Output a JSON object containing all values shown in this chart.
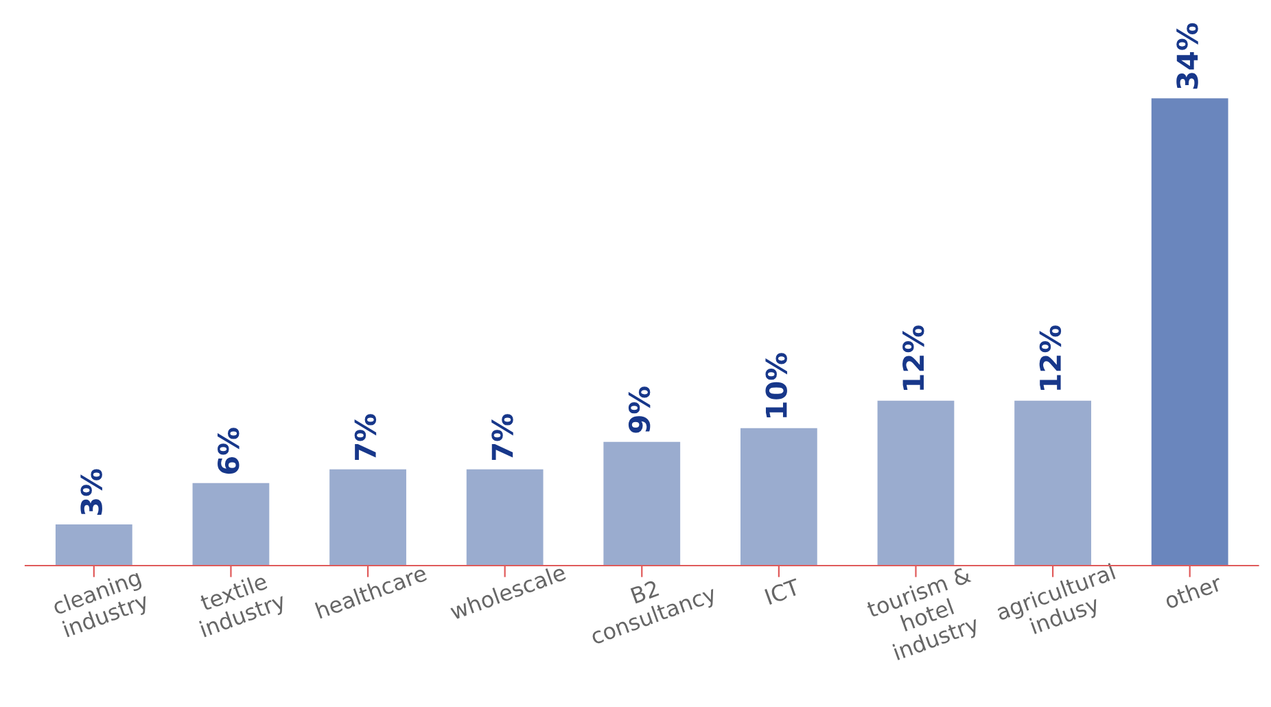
{
  "chart_data": {
    "type": "bar",
    "categories": [
      "cleaning\nindustry",
      "textile\nindustry",
      "healthcare",
      "wholescale",
      "B2\nconsultancy",
      "ICT",
      "tourism &\nhotel\nindustry",
      "agricultural\nindusy",
      "other"
    ],
    "values": [
      3,
      6,
      7,
      7,
      9,
      10,
      12,
      12,
      34
    ],
    "colors": [
      "#9aaccf",
      "#9aaccf",
      "#9aaccf",
      "#9aaccf",
      "#9aaccf",
      "#9aaccf",
      "#9aaccf",
      "#9aaccf",
      "#6a86bd"
    ],
    "value_labels": [
      "3%",
      "6%",
      "7%",
      "7%",
      "9%",
      "10%",
      "12%",
      "12%",
      "34%"
    ],
    "grid": false,
    "legend": false
  }
}
